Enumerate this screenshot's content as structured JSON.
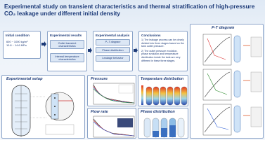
{
  "title": "Experimental study on transient characteristics and thermal stratification of high-pressure CO₂ leakage under different initial density",
  "initial_condition": {
    "heading": "Initial condition",
    "lines": [
      "600 ~ 1000 kg/m³",
      "10.8 ~ 14.6 MPa"
    ]
  },
  "experimental_results": {
    "heading": "Experimental results",
    "items": [
      "Outlet transient characteristics",
      "Internal temperature characteristics"
    ]
  },
  "experimental_analysis": {
    "heading": "Experimental analysis",
    "items": [
      "P–T diagram",
      "Phase distribution",
      "Leakage behavior"
    ]
  },
  "conclusions": {
    "heading": "Conclusions",
    "items": [
      "1) The leakage process can be clearly divided into three stages based on the tank outlet pressure.",
      "2) The outlet pressure evolution, phase evolution and temperature distribution inside the tank are very different in these three stages."
    ]
  },
  "panels": {
    "pt_diagram": "P-T diagram",
    "setup": "Experimental setup",
    "pressure": "Pressure",
    "flow_rate": "Flow rate",
    "temperature": "Temperature distribution",
    "phase": "Phase distribution"
  }
}
